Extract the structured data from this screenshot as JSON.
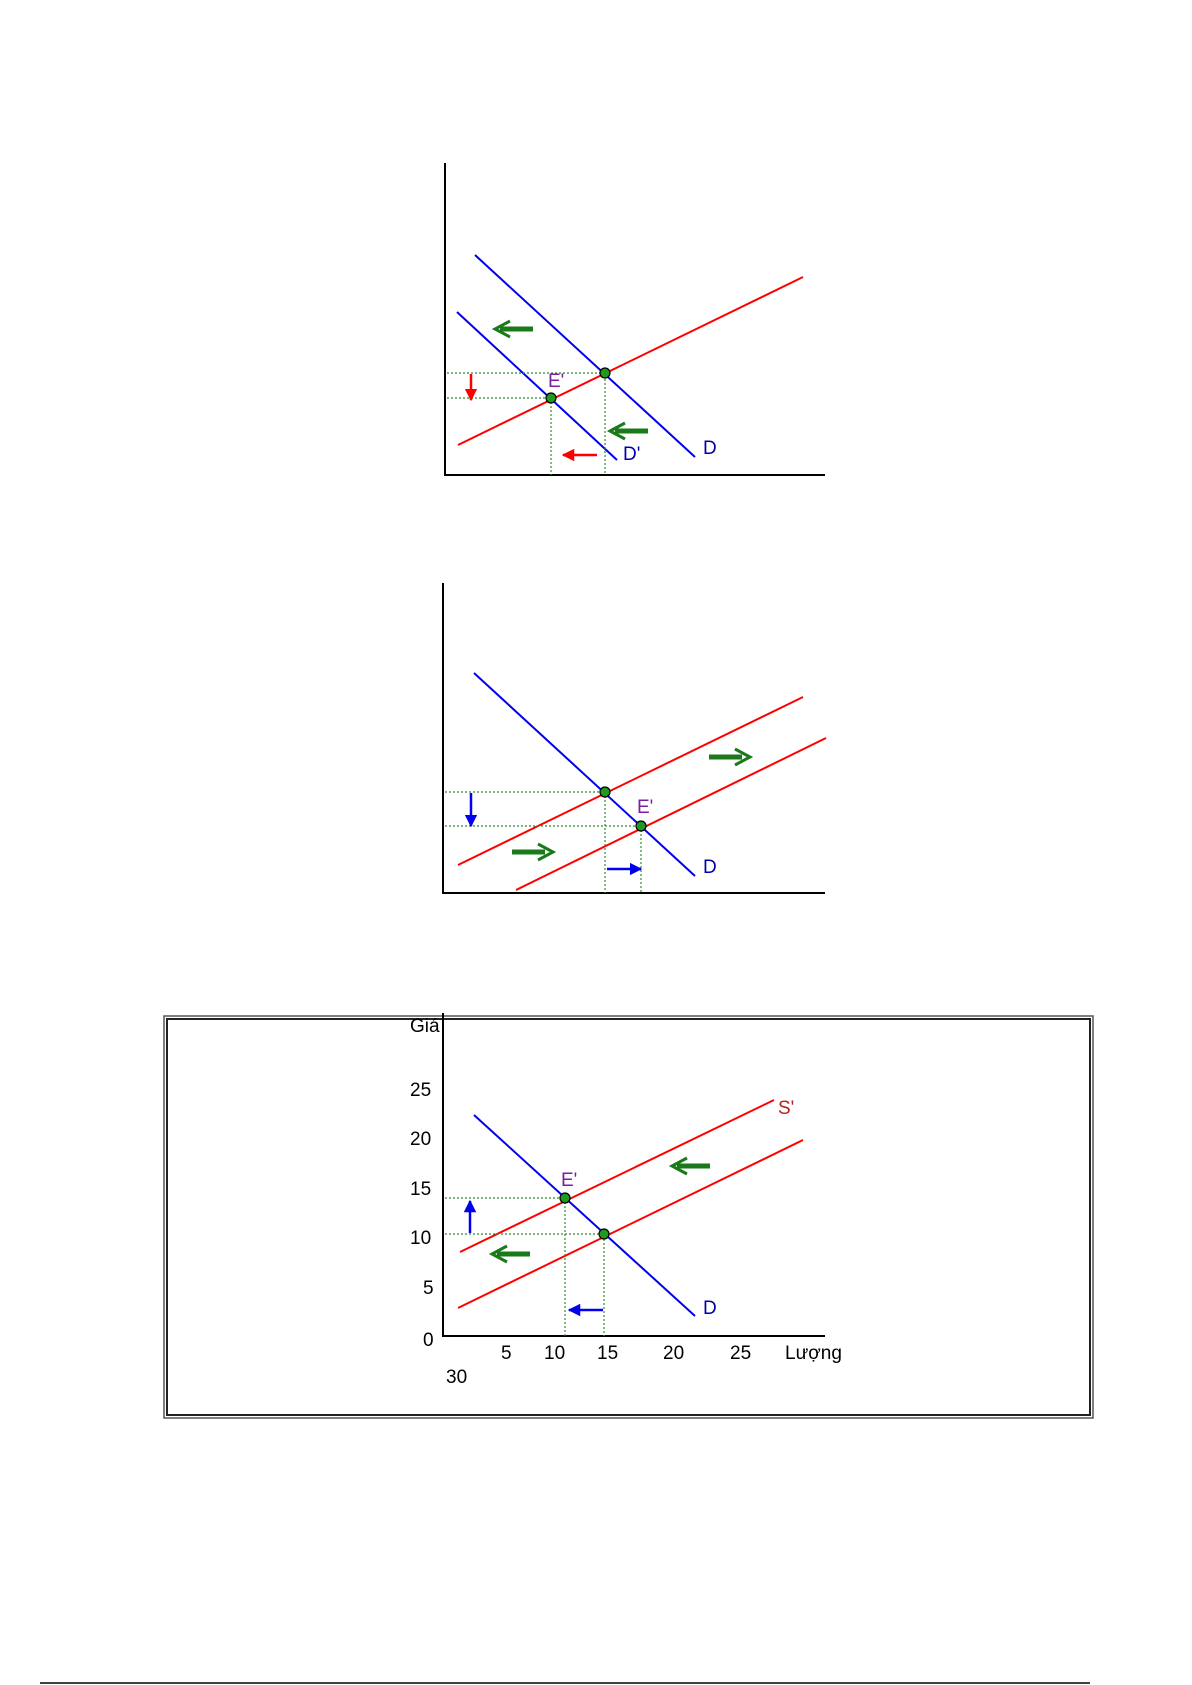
{
  "diagram1": {
    "labels": {
      "demand": "D",
      "demand_shifted": "D'",
      "new_equilibrium": "E'"
    }
  },
  "diagram2": {
    "labels": {
      "demand": "D",
      "new_equilibrium": "E'"
    }
  },
  "diagram3": {
    "labels": {
      "y_axis": "Giá",
      "x_axis": "Lượng",
      "demand": "D",
      "supply_shifted": "S'",
      "new_equilibrium": "E'"
    },
    "y_ticks": [
      "0",
      "5",
      "10",
      "15",
      "20",
      "25"
    ],
    "x_ticks": [
      "5",
      "10",
      "15",
      "20",
      "25"
    ],
    "x_tick_wrapped": "30"
  },
  "colors": {
    "demand": "#0000ee",
    "supply": "#ff0000",
    "shift_arrow": "#1a7a1a",
    "equilibrium_point": "#1f9a1f",
    "equilibrium_label": "#7b1fa2",
    "shifted_supply_label": "#b22222"
  }
}
